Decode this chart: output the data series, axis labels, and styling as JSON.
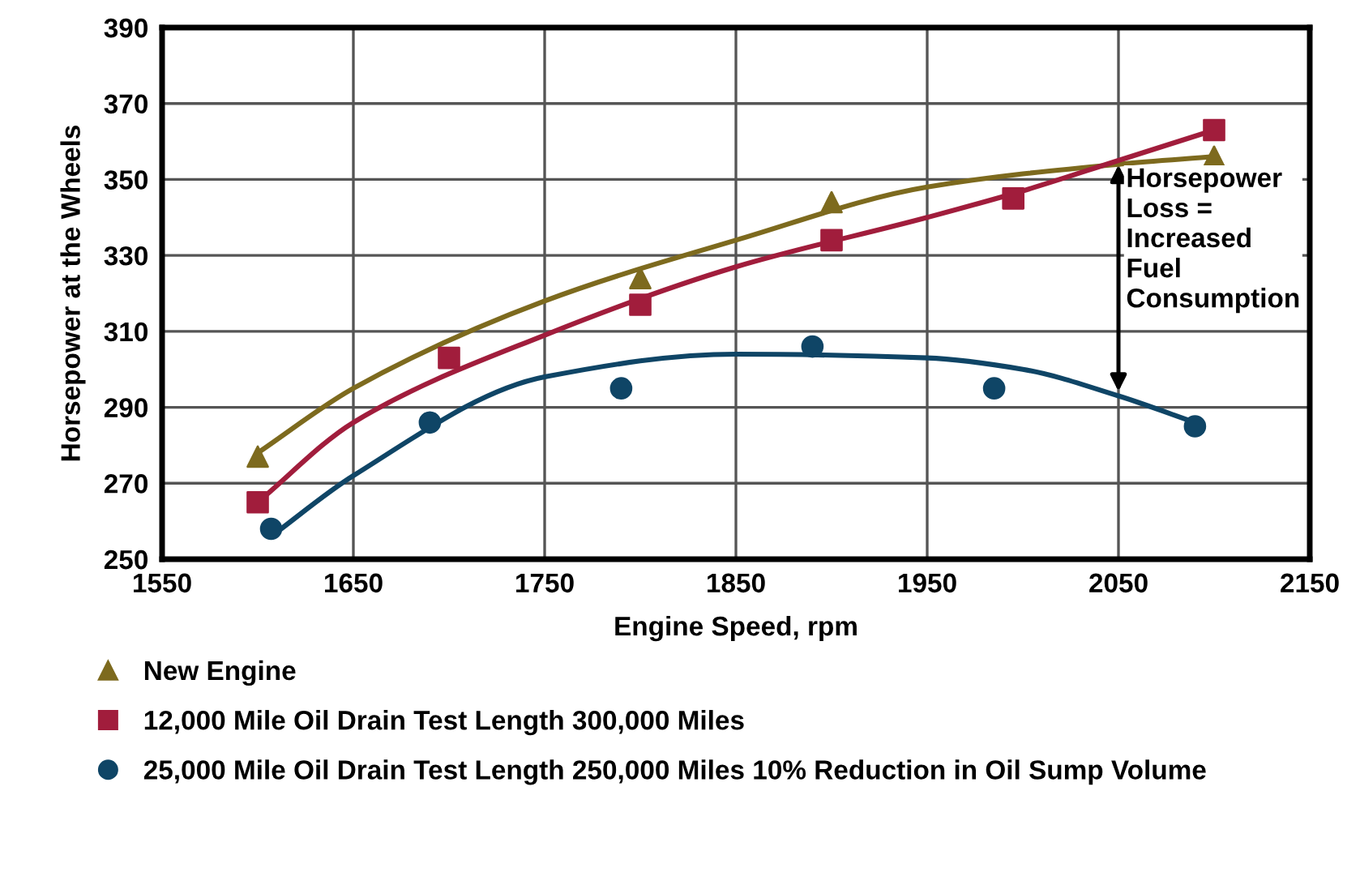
{
  "chart_data": {
    "type": "scatter",
    "xlabel": "Engine Speed, rpm",
    "ylabel": "Horsepower at the Wheels",
    "xlim": [
      1550,
      2150
    ],
    "xticks": [
      1550,
      1650,
      1750,
      1850,
      1950,
      2050,
      2150
    ],
    "ylim": [
      250,
      390
    ],
    "yticks": [
      250,
      270,
      290,
      310,
      330,
      350,
      370,
      390
    ],
    "grid": true,
    "legend": "bottom",
    "annotations": [
      {
        "text": "Horsepower\nLoss =\nIncreased\nFuel\nConsumption",
        "x": 2050,
        "y": 293
      }
    ],
    "series": [
      {
        "name": "New Engine",
        "color": "#7d6a1e",
        "marker": "triangle",
        "x": [
          1600,
          1800,
          1900,
          2100
        ],
        "values": [
          277,
          324,
          344,
          356
        ]
      },
      {
        "name": "12,000 Mile Oil Drain Test Length 300,000 Miles",
        "color": "#a11d3c",
        "marker": "square",
        "x": [
          1600,
          1700,
          1800,
          1900,
          1995,
          2100
        ],
        "values": [
          265,
          303,
          317,
          334,
          345,
          363
        ]
      },
      {
        "name": "25,000 Mile Oil Drain Test Length 250,000 Miles 10% Reduction in Oil Sump Volume",
        "color": "#0f4566",
        "marker": "circle",
        "x": [
          1607,
          1690,
          1790,
          1890,
          1985,
          2090
        ],
        "values": [
          258,
          286,
          295,
          306,
          295,
          285
        ]
      },
      {
        "type": "line",
        "color": "#7d6a1e",
        "x": [
          1600,
          1650,
          1750,
          1850,
          1950,
          2050,
          2100
        ],
        "values": [
          278,
          295,
          318,
          334,
          348,
          354,
          356
        ]
      },
      {
        "type": "line",
        "color": "#a11d3c",
        "x": [
          1600,
          1650,
          1750,
          1850,
          1950,
          2000,
          2050,
          2100
        ],
        "values": [
          265,
          286,
          309,
          327,
          340,
          347,
          355,
          363
        ]
      },
      {
        "type": "line",
        "color": "#0f4566",
        "x": [
          1607,
          1650,
          1750,
          1850,
          1950,
          2000,
          2050,
          2090
        ],
        "values": [
          256,
          272,
          298,
          304,
          303,
          300,
          293,
          286
        ]
      }
    ]
  }
}
